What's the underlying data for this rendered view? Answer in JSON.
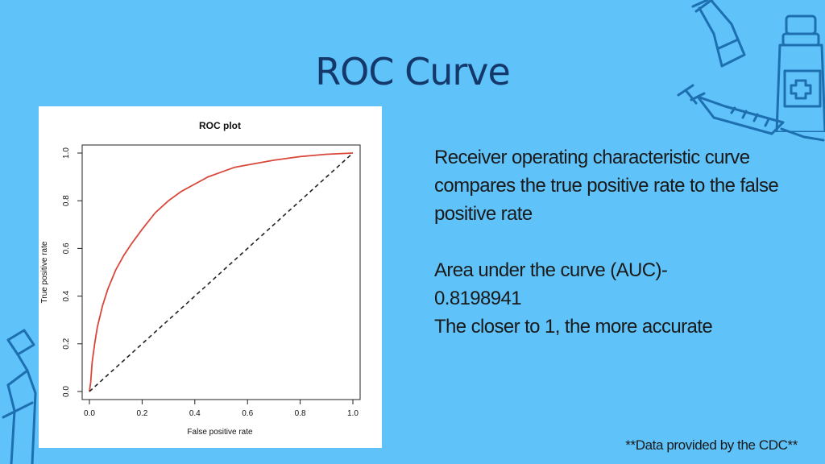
{
  "slide": {
    "title": "ROC Curve",
    "description": "Receiver operating characteristic curve compares the true positive rate to the false positive rate",
    "auc_line": "Area under the curve (AUC)-",
    "auc_value": "0.8198941",
    "accuracy_note": "The closer to 1, the more accurate",
    "footer": "**Data provided by the CDC**"
  },
  "colors": {
    "background": "#5fc2f9",
    "title": "#14386a",
    "roc_line": "#d9473a",
    "reference_line": "#222222",
    "decoration_stroke": "#1d6fb0"
  },
  "icons": [
    "flask-icon",
    "medicine-bottle-icon",
    "syringe-icon",
    "spray-bottle-icon"
  ],
  "chart_data": {
    "type": "line",
    "title": "ROC plot",
    "xlabel": "False positive rate",
    "ylabel": "True positive rate",
    "xlim": [
      0,
      1
    ],
    "ylim": [
      0,
      1
    ],
    "xticks": [
      "0.0",
      "0.2",
      "0.4",
      "0.6",
      "0.8",
      "1.0"
    ],
    "yticks": [
      "0.0",
      "0.2",
      "0.4",
      "0.6",
      "0.8",
      "1.0"
    ],
    "grid": false,
    "series": [
      {
        "style": "solid",
        "x": [
          0,
          0.005,
          0.01,
          0.02,
          0.03,
          0.05,
          0.07,
          0.1,
          0.13,
          0.16,
          0.2,
          0.25,
          0.3,
          0.35,
          0.4,
          0.45,
          0.5,
          0.55,
          0.6,
          0.7,
          0.8,
          0.9,
          1.0
        ],
        "y": [
          0,
          0.04,
          0.12,
          0.2,
          0.27,
          0.36,
          0.43,
          0.51,
          0.57,
          0.62,
          0.68,
          0.75,
          0.8,
          0.84,
          0.87,
          0.9,
          0.92,
          0.94,
          0.95,
          0.97,
          0.985,
          0.995,
          1.0
        ]
      },
      {
        "style": "dashed",
        "x": [
          0,
          1
        ],
        "y": [
          0,
          1
        ]
      }
    ]
  }
}
